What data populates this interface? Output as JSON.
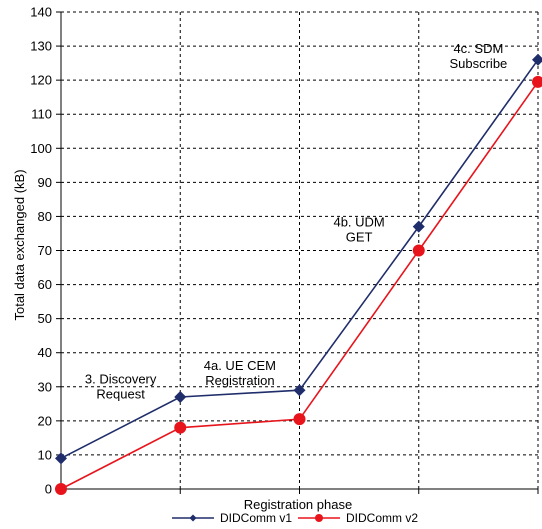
{
  "chart_data": {
    "type": "line",
    "xlabel": "Registration phase",
    "ylabel": "Total data exchanged (kB)",
    "ylim": [
      0,
      140
    ],
    "yticks": [
      0,
      10,
      20,
      30,
      40,
      50,
      60,
      70,
      80,
      90,
      100,
      110,
      120,
      130,
      140
    ],
    "x": [
      0,
      1,
      2,
      3,
      4
    ],
    "grid": true,
    "legend_position": "bottom",
    "series": [
      {
        "name": "DIDComm v1",
        "color": "#1f2d6b",
        "marker": "diamond",
        "values": [
          9,
          27,
          29,
          77,
          126
        ]
      },
      {
        "name": "DIDComm v2",
        "color": "#e8141c",
        "marker": "circle",
        "values": [
          0,
          18,
          20.5,
          70,
          119.5
        ]
      }
    ],
    "annotations": [
      {
        "lines": [
          "3. Discovery",
          "Request"
        ],
        "x": 0.5,
        "y": 31
      },
      {
        "lines": [
          "4a. UE CEM",
          "Registration"
        ],
        "x": 1.5,
        "y": 35
      },
      {
        "lines": [
          "4b. UDM",
          "GET"
        ],
        "x": 2.5,
        "y": 77
      },
      {
        "lines": [
          "4c. SDM",
          "Subscribe"
        ],
        "x": 3.5,
        "y": 128
      }
    ]
  }
}
